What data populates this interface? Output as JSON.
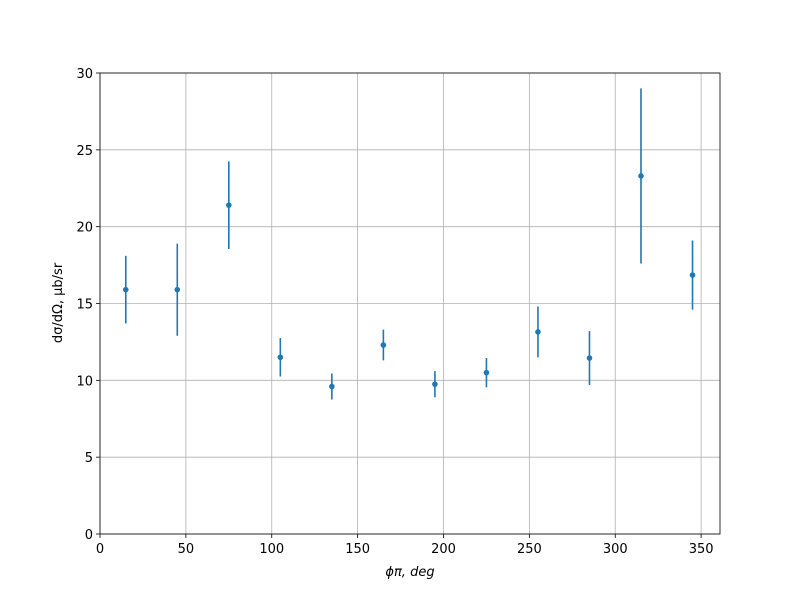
{
  "chart_data": {
    "type": "errorbar",
    "xlabel": "ϕπ, deg",
    "ylabel": "dσ/dΩ, μb/sr",
    "x": [
      15,
      45,
      75,
      105,
      135,
      165,
      195,
      225,
      255,
      285,
      315,
      345
    ],
    "values": [
      15.9,
      15.9,
      21.4,
      11.5,
      9.6,
      12.3,
      9.75,
      10.5,
      13.15,
      11.45,
      23.3,
      16.85
    ],
    "errors": [
      2.2,
      3.0,
      2.85,
      1.25,
      0.85,
      1.0,
      0.85,
      0.95,
      1.65,
      1.75,
      5.7,
      2.25
    ],
    "color": "#1f77b4",
    "xlim": [
      0,
      361
    ],
    "xticks": [
      0,
      50,
      100,
      150,
      200,
      250,
      300,
      350
    ],
    "ylim": [
      0,
      30
    ],
    "yticks": [
      0,
      5,
      10,
      15,
      20,
      25,
      30
    ],
    "grid": true
  }
}
